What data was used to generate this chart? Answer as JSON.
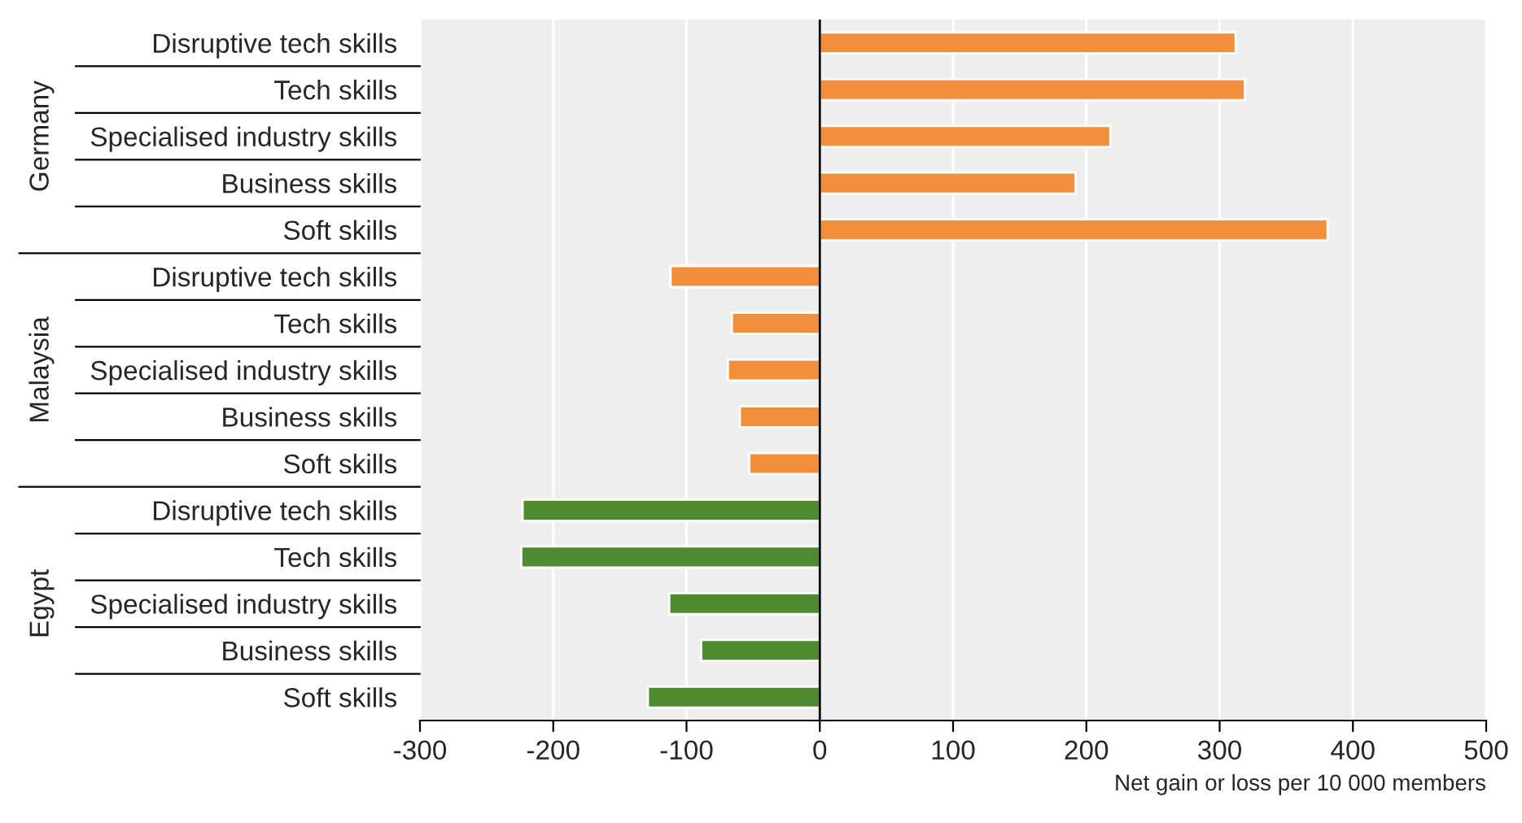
{
  "chart_data": {
    "type": "bar",
    "orientation": "horizontal",
    "categories": [
      "Disruptive tech skills",
      "Tech skills",
      "Specialised industry skills",
      "Business skills",
      "Soft skills",
      "Disruptive tech skills",
      "Tech skills",
      "Specialised industry skills",
      "Business skills",
      "Soft skills",
      "Disruptive tech skills",
      "Tech skills",
      "Specialised industry skills",
      "Business skills",
      "Soft skills"
    ],
    "values": [
      312,
      319,
      218,
      192,
      381,
      -112,
      -66,
      -69,
      -60,
      -53,
      -223,
      -224,
      -113,
      -89,
      -129
    ],
    "colors": [
      "#f28e3c",
      "#f28e3c",
      "#f28e3c",
      "#f28e3c",
      "#f28e3c",
      "#f28e3c",
      "#f28e3c",
      "#f28e3c",
      "#f28e3c",
      "#f28e3c",
      "#4e8a30",
      "#4e8a30",
      "#4e8a30",
      "#4e8a30",
      "#4e8a30"
    ],
    "annotations": [
      "Germany",
      "Malaysia",
      "Egypt"
    ],
    "xlabel": "Net gain or loss per 10 000 members",
    "xlim": [
      -300,
      500
    ],
    "xticks": [
      -300,
      -200,
      -100,
      0,
      100,
      200,
      300,
      400,
      500
    ],
    "ref_lines": [
      {
        "axis": "x",
        "value": 0,
        "color": "#000000"
      }
    ],
    "grid": "x"
  }
}
